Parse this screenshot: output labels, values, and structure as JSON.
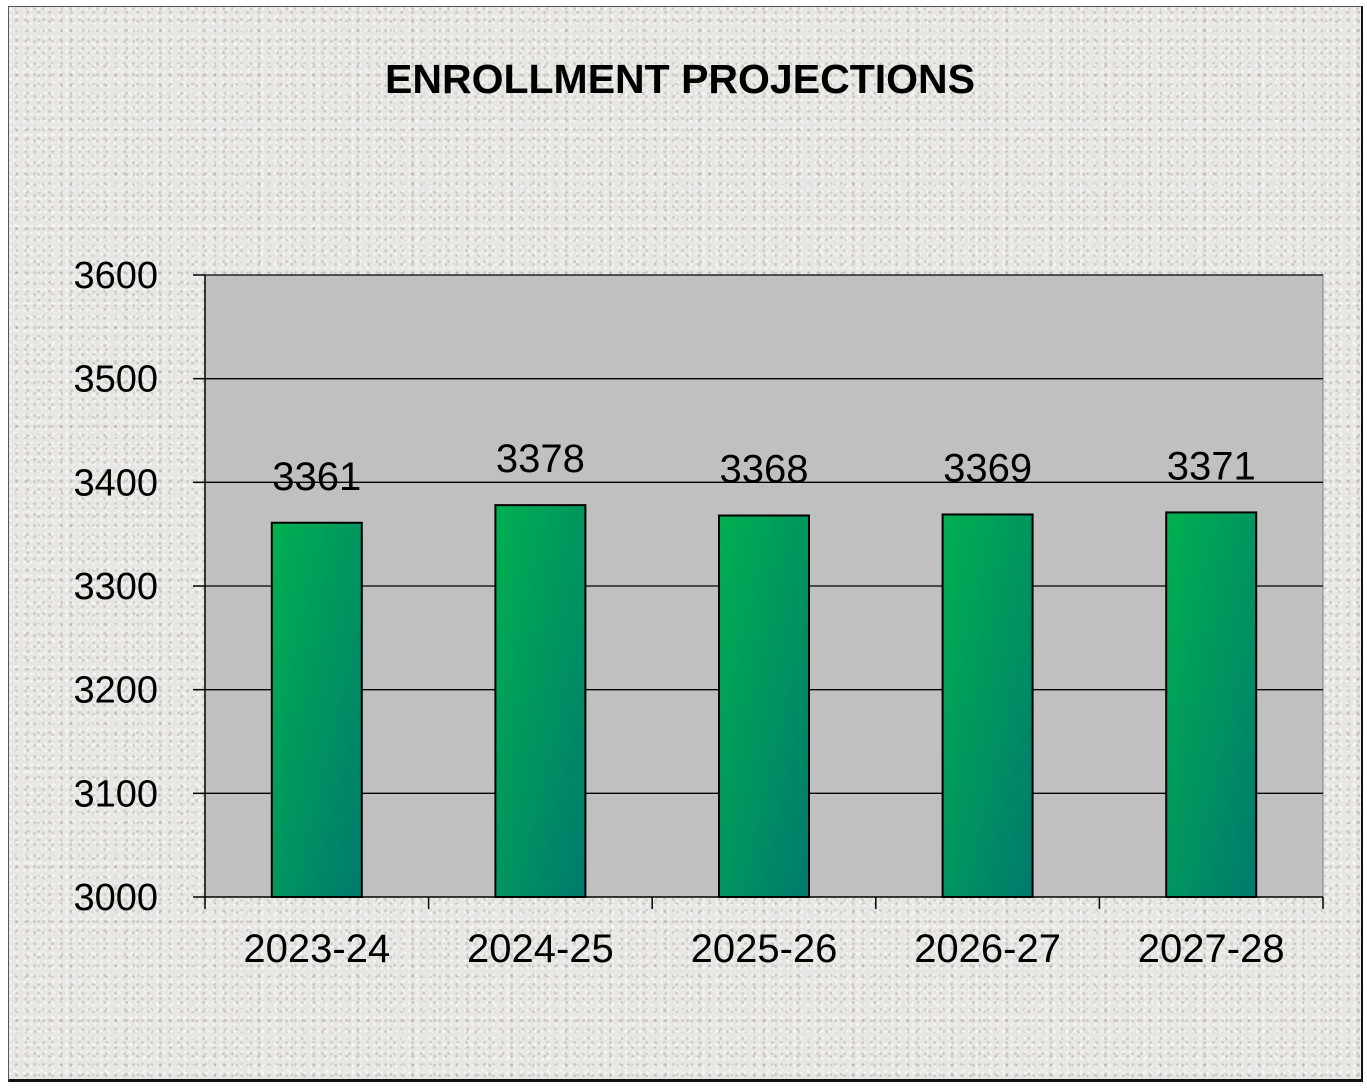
{
  "chart_data": {
    "type": "bar",
    "title": "ENROLLMENT PROJECTIONS",
    "categories": [
      "2023-24",
      "2024-25",
      "2025-26",
      "2026-27",
      "2027-28"
    ],
    "values": [
      3361,
      3378,
      3368,
      3369,
      3371
    ],
    "data_labels": [
      "3361",
      "3378",
      "3368",
      "3369",
      "3371"
    ],
    "ylim": [
      3000,
      3600
    ],
    "yticks": [
      3000,
      3100,
      3200,
      3300,
      3400,
      3500,
      3600
    ],
    "ytick_labels": [
      "3000",
      "3100",
      "3200",
      "3300",
      "3400",
      "3500",
      "3600"
    ],
    "xlabel": "",
    "ylabel": "",
    "grid": true,
    "legend": false
  },
  "colors": {
    "plot_background": "#c0c0c0",
    "bar_top": "#00b050",
    "bar_bottom": "#007a6e",
    "gridline": "#000000"
  }
}
